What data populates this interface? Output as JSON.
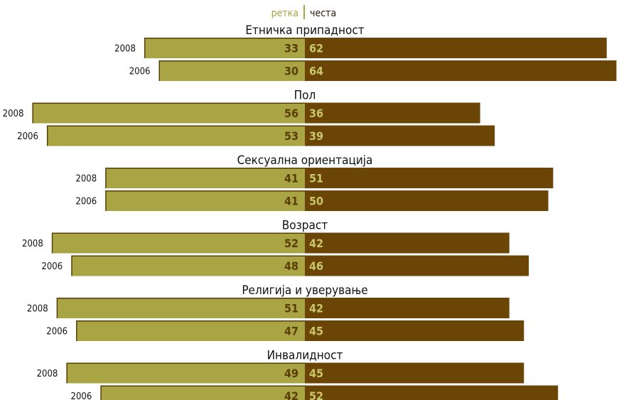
{
  "legend": {
    "left_label": "ретка",
    "right_label": "честа"
  },
  "colors": {
    "left_bar": "#a9a544",
    "left_shadow": "#5a3d05",
    "right_bar": "#6b4506",
    "left_value_text": "#5a3d05",
    "right_value_text": "#c9c76c",
    "divider": "#a9a544"
  },
  "chart_data": {
    "type": "bar",
    "orientation": "horizontal-diverging",
    "series_names": [
      "ретка",
      "честа"
    ],
    "categories": [
      {
        "name": "Етничка припадност",
        "rows": [
          {
            "year": "2008",
            "left": 33,
            "right": 62
          },
          {
            "year": "2006",
            "left": 30,
            "right": 64
          }
        ]
      },
      {
        "name": "Пол",
        "rows": [
          {
            "year": "2008",
            "left": 56,
            "right": 36
          },
          {
            "year": "2006",
            "left": 53,
            "right": 39
          }
        ]
      },
      {
        "name": "Сексуална ориентација",
        "rows": [
          {
            "year": "2008",
            "left": 41,
            "right": 51
          },
          {
            "year": "2006",
            "left": 41,
            "right": 50
          }
        ]
      },
      {
        "name": "Возраст",
        "rows": [
          {
            "year": "2008",
            "left": 52,
            "right": 42
          },
          {
            "year": "2006",
            "left": 48,
            "right": 46
          }
        ]
      },
      {
        "name": "Религија и уверување",
        "rows": [
          {
            "year": "2008",
            "left": 51,
            "right": 42
          },
          {
            "year": "2006",
            "left": 47,
            "right": 45
          }
        ]
      },
      {
        "name": "Инвалидност",
        "rows": [
          {
            "year": "2008",
            "left": 49,
            "right": 45
          },
          {
            "year": "2006",
            "left": 42,
            "right": 52
          }
        ]
      }
    ]
  }
}
